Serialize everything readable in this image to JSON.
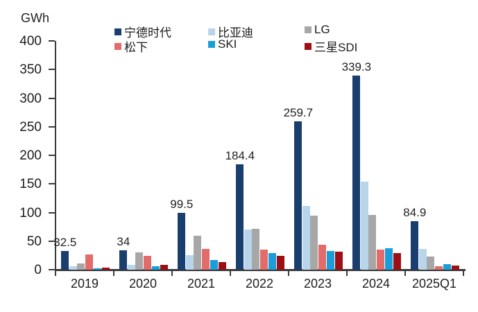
{
  "chart_data": {
    "type": "bar",
    "title": "",
    "ylabel": "GWh",
    "xlabel": "",
    "ylim": [
      0,
      400
    ],
    "ytick_step": 50,
    "yticks": [
      "400",
      "350",
      "300",
      "250",
      "200",
      "150",
      "100",
      "50",
      "0"
    ],
    "grid": "off",
    "legend_position": "top",
    "categories": [
      "2019",
      "2020",
      "2021",
      "2022",
      "2023",
      "2024",
      "2025Q1"
    ],
    "series": [
      {
        "name": "宁德时代",
        "color": "#1a3e6e",
        "values": [
          32.5,
          34,
          99.5,
          184.4,
          259.7,
          339.3,
          84.9
        ],
        "value_labels": [
          "32.5",
          "34",
          "99.5",
          "184.4",
          "259.7",
          "339.3",
          "84.9"
        ]
      },
      {
        "name": "比亚迪",
        "color": "#b9d5ea",
        "values": [
          6,
          8,
          26,
          70,
          111,
          154,
          36
        ],
        "value_labels": null
      },
      {
        "name": "LG",
        "color": "#a7a7a7",
        "values": [
          11,
          30,
          59,
          71,
          95,
          96,
          23
        ],
        "value_labels": null
      },
      {
        "name": "松下",
        "color": "#e16c6a",
        "values": [
          27,
          24,
          36,
          35,
          44,
          35,
          6
        ],
        "value_labels": null
      },
      {
        "name": "SKI",
        "color": "#1b9dd9",
        "values": [
          2,
          6,
          17,
          29,
          33,
          38,
          10
        ],
        "value_labels": null
      },
      {
        "name": "三星SDI",
        "color": "#9d0f14",
        "values": [
          3.5,
          8,
          13,
          24,
          31,
          29,
          7
        ],
        "value_labels": null
      }
    ]
  }
}
